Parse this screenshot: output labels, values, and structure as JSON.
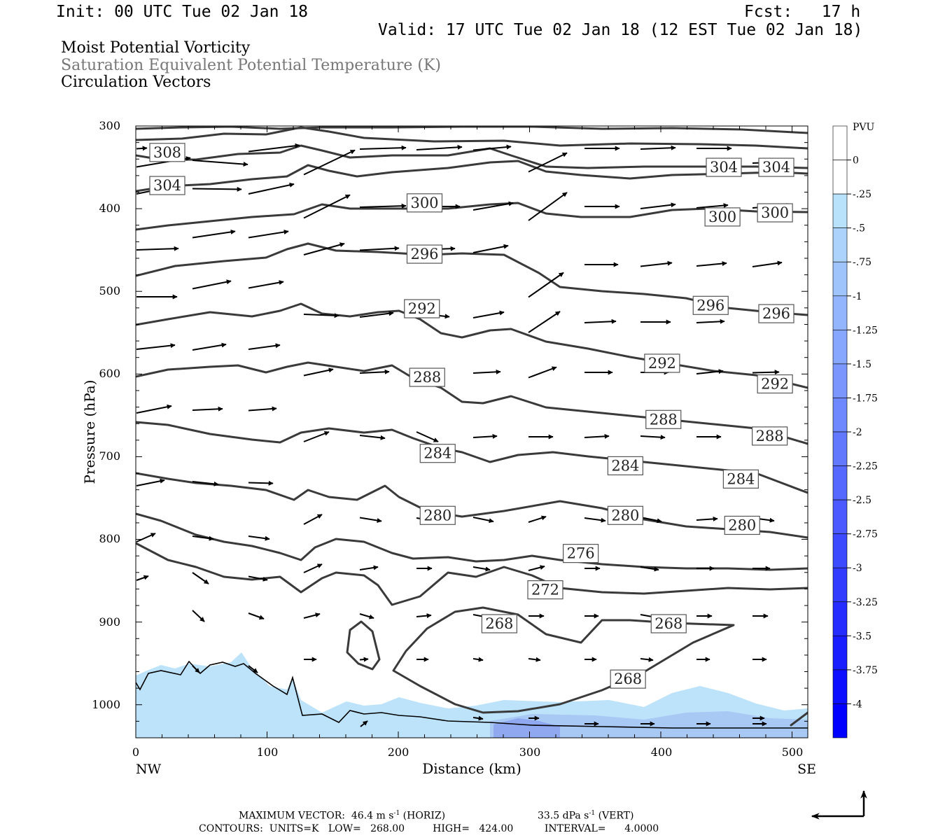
{
  "header": {
    "init": "Init: 00 UTC Tue 02 Jan 18",
    "fcst": "Fcst:   17 h",
    "valid": "Valid: 17 UTC Tue 02 Jan 18 (12 EST Tue 02 Jan 18)",
    "field1": "Moist Potential Vorticity",
    "field2": "Saturation Equivalent Potential Temperature (K)",
    "field3": "Circulation Vectors"
  },
  "footer": {
    "max_vector_prefix": "MAXIMUM VECTOR:  46.4 m s",
    "max_vector_horiz": " (HORIZ)",
    "max_vector_vert_value": "33.5 dPa s",
    "max_vector_vert": " (VERT)",
    "exponent": "-1",
    "contours": "CONTOURS:  UNITS=K   LOW=   268.00         HIGH=   424.00          INTERVAL=      4.0000"
  },
  "colors": {
    "contour": "#3a3a3a",
    "pv_light": "#bde3fb",
    "pv_mid": "#a9c9f5",
    "pv_dark": "#8fa8ef"
  },
  "chart_data": {
    "type": "contour",
    "xlabel": "Distance (km)",
    "ylabel": "Pressure (hPa)",
    "x_left_label": "NW",
    "x_right_label": "SE",
    "xlim": [
      0,
      512
    ],
    "ylim": [
      300,
      1040
    ],
    "y_scale": "linear, inverted (pressure increases downward)",
    "xticks": [
      0,
      100,
      200,
      300,
      400,
      500
    ],
    "yticks": [
      300,
      400,
      500,
      600,
      700,
      800,
      900,
      1000
    ],
    "contour_levels_labeled": [
      {
        "value": "308",
        "x": 24,
        "p": 332
      },
      {
        "value": "304",
        "x": 24,
        "p": 372
      },
      {
        "value": "304",
        "x": 448,
        "p": 350
      },
      {
        "value": "304",
        "x": 488,
        "p": 350
      },
      {
        "value": "300",
        "x": 220,
        "p": 393
      },
      {
        "value": "300",
        "x": 447,
        "p": 410
      },
      {
        "value": "300",
        "x": 487,
        "p": 405
      },
      {
        "value": "296",
        "x": 220,
        "p": 455
      },
      {
        "value": "296",
        "x": 438,
        "p": 517
      },
      {
        "value": "296",
        "x": 488,
        "p": 527
      },
      {
        "value": "292",
        "x": 218,
        "p": 521
      },
      {
        "value": "292",
        "x": 401,
        "p": 587
      },
      {
        "value": "292",
        "x": 487,
        "p": 612
      },
      {
        "value": "288",
        "x": 222,
        "p": 604
      },
      {
        "value": "288",
        "x": 402,
        "p": 655
      },
      {
        "value": "288",
        "x": 483,
        "p": 675
      },
      {
        "value": "284",
        "x": 230,
        "p": 696
      },
      {
        "value": "284",
        "x": 373,
        "p": 711
      },
      {
        "value": "284",
        "x": 461,
        "p": 727
      },
      {
        "value": "280",
        "x": 230,
        "p": 771
      },
      {
        "value": "280",
        "x": 373,
        "p": 771
      },
      {
        "value": "280",
        "x": 462,
        "p": 783
      },
      {
        "value": "276",
        "x": 339,
        "p": 817
      },
      {
        "value": "272",
        "x": 312,
        "p": 861
      },
      {
        "value": "268",
        "x": 277,
        "p": 902
      },
      {
        "value": "268",
        "x": 406,
        "p": 902
      },
      {
        "value": "268",
        "x": 375,
        "p": 969
      }
    ],
    "colorbar": {
      "title": "PVU",
      "labels": [
        "0",
        "-.25",
        "-.5",
        "-.75",
        "-1",
        "-1.25",
        "-1.5",
        "-1.75",
        "-2",
        "-2.25",
        "-2.5",
        "-2.75",
        "-3",
        "-3.25",
        "-3.5",
        "-3.75",
        "-4"
      ]
    }
  }
}
